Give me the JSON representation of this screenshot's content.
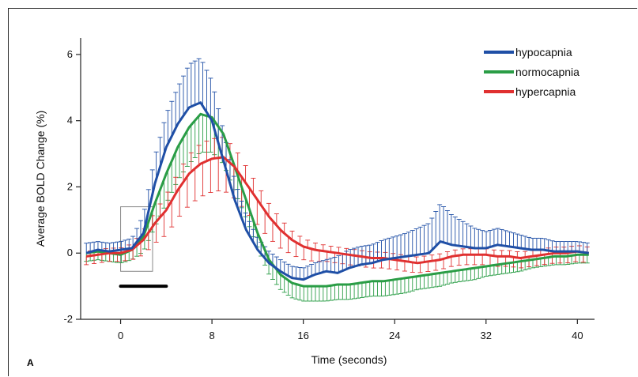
{
  "panel_label": "A",
  "chart_data": {
    "type": "line",
    "title": "",
    "xlabel": "Time (seconds)",
    "ylabel": "Average BOLD Change (%)",
    "xlim": [
      -3.5,
      41.5
    ],
    "ylim": [
      -2,
      6.5
    ],
    "x_ticks": [
      0,
      8,
      16,
      24,
      32,
      40
    ],
    "y_ticks": [
      -2,
      0,
      2,
      4,
      6
    ],
    "grid": false,
    "legend": "top-right",
    "stimulus_bar": [
      0,
      4
    ],
    "roi_box": {
      "x": [
        0,
        2.8
      ],
      "y": [
        -0.55,
        1.4
      ]
    },
    "x": [
      -3,
      -2,
      -1,
      0,
      1,
      2,
      3,
      4,
      5,
      6,
      7,
      8,
      9,
      10,
      11,
      12,
      13,
      14,
      15,
      16,
      17,
      18,
      19,
      20,
      21,
      22,
      23,
      24,
      25,
      26,
      27,
      28,
      29,
      30,
      31,
      32,
      33,
      34,
      35,
      36,
      37,
      38,
      39,
      40,
      41
    ],
    "series": [
      {
        "name": "hypocapnia",
        "color": "#1f4fa6",
        "values": [
          0.0,
          0.1,
          0.05,
          0.1,
          0.15,
          0.6,
          2.1,
          3.2,
          3.9,
          4.4,
          4.55,
          4.0,
          2.8,
          1.6,
          0.7,
          0.1,
          -0.3,
          -0.55,
          -0.75,
          -0.8,
          -0.65,
          -0.55,
          -0.6,
          -0.45,
          -0.35,
          -0.3,
          -0.2,
          -0.15,
          -0.1,
          -0.05,
          0.0,
          0.35,
          0.25,
          0.2,
          0.15,
          0.15,
          0.25,
          0.2,
          0.15,
          0.1,
          0.1,
          0.05,
          0.05,
          0.05,
          0.0
        ],
        "err": [
          0.3,
          0.25,
          0.25,
          0.25,
          0.3,
          0.55,
          0.8,
          1.0,
          1.1,
          1.3,
          1.35,
          1.2,
          0.9,
          0.6,
          0.45,
          0.35,
          0.35,
          0.35,
          0.35,
          0.35,
          0.35,
          0.35,
          0.5,
          0.55,
          0.55,
          0.55,
          0.6,
          0.65,
          0.7,
          0.8,
          0.9,
          1.15,
          0.9,
          0.75,
          0.6,
          0.5,
          0.5,
          0.45,
          0.4,
          0.35,
          0.35,
          0.3,
          0.3,
          0.3,
          0.3
        ]
      },
      {
        "name": "normocapnia",
        "color": "#2a9d46",
        "values": [
          0.0,
          0.05,
          0.0,
          -0.05,
          0.1,
          0.5,
          1.5,
          2.4,
          3.2,
          3.8,
          4.2,
          4.1,
          3.6,
          2.6,
          1.6,
          0.6,
          -0.2,
          -0.65,
          -0.9,
          -1.0,
          -1.0,
          -1.0,
          -0.95,
          -0.95,
          -0.9,
          -0.85,
          -0.85,
          -0.8,
          -0.75,
          -0.7,
          -0.65,
          -0.6,
          -0.55,
          -0.5,
          -0.45,
          -0.4,
          -0.35,
          -0.3,
          -0.25,
          -0.2,
          -0.15,
          -0.1,
          -0.1,
          -0.05,
          -0.05
        ],
        "err": [
          0.25,
          0.25,
          0.25,
          0.25,
          0.3,
          0.45,
          0.7,
          0.9,
          1.0,
          1.1,
          1.15,
          1.05,
          0.9,
          0.75,
          0.55,
          0.45,
          0.45,
          0.45,
          0.45,
          0.45,
          0.45,
          0.45,
          0.45,
          0.45,
          0.45,
          0.45,
          0.45,
          0.45,
          0.45,
          0.4,
          0.4,
          0.4,
          0.35,
          0.35,
          0.35,
          0.3,
          0.3,
          0.3,
          0.3,
          0.25,
          0.25,
          0.25,
          0.25,
          0.25,
          0.25
        ]
      },
      {
        "name": "hypercapnia",
        "color": "#e03030",
        "values": [
          -0.1,
          -0.05,
          0.0,
          0.0,
          0.1,
          0.4,
          0.9,
          1.3,
          1.9,
          2.4,
          2.7,
          2.85,
          2.9,
          2.6,
          2.1,
          1.6,
          1.1,
          0.7,
          0.4,
          0.2,
          0.1,
          0.05,
          0.0,
          -0.05,
          -0.1,
          -0.15,
          -0.15,
          -0.2,
          -0.25,
          -0.3,
          -0.25,
          -0.2,
          -0.1,
          -0.05,
          -0.05,
          -0.05,
          -0.1,
          -0.1,
          -0.15,
          -0.1,
          -0.05,
          0.0,
          0.0,
          0.05,
          0.0
        ],
        "err": [
          0.25,
          0.25,
          0.25,
          0.25,
          0.3,
          0.45,
          0.6,
          0.75,
          0.85,
          0.95,
          1.0,
          1.0,
          1.0,
          0.95,
          0.85,
          0.75,
          0.65,
          0.55,
          0.45,
          0.4,
          0.35,
          0.3,
          0.3,
          0.3,
          0.3,
          0.3,
          0.3,
          0.3,
          0.3,
          0.3,
          0.3,
          0.3,
          0.3,
          0.3,
          0.3,
          0.3,
          0.3,
          0.3,
          0.3,
          0.3,
          0.3,
          0.3,
          0.3,
          0.3,
          0.3
        ]
      }
    ]
  }
}
